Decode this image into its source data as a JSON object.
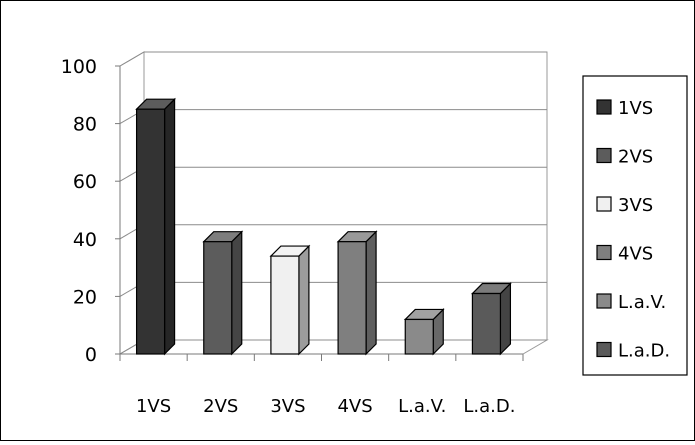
{
  "chart_data": {
    "type": "bar",
    "style": "3d-clustered-column",
    "categories": [
      "1VS",
      "2VS",
      "3VS",
      "4VS",
      "L.a.V.",
      "L.a.D."
    ],
    "values": [
      85,
      39,
      34,
      39,
      12,
      21
    ],
    "yticks": [
      "0",
      "20",
      "40",
      "60",
      "80",
      "100"
    ],
    "ylim": [
      0,
      100
    ],
    "grid": true,
    "legend_position": "right",
    "legend": [
      "1VS",
      "2VS",
      "3VS",
      "4VS",
      "L.a.V.",
      "L.a.D."
    ],
    "colors": [
      "#333333",
      "#5c5c5c",
      "#f0f0f0",
      "#7f7f7f",
      "#8a8a8a",
      "#5a5a5a"
    ]
  }
}
